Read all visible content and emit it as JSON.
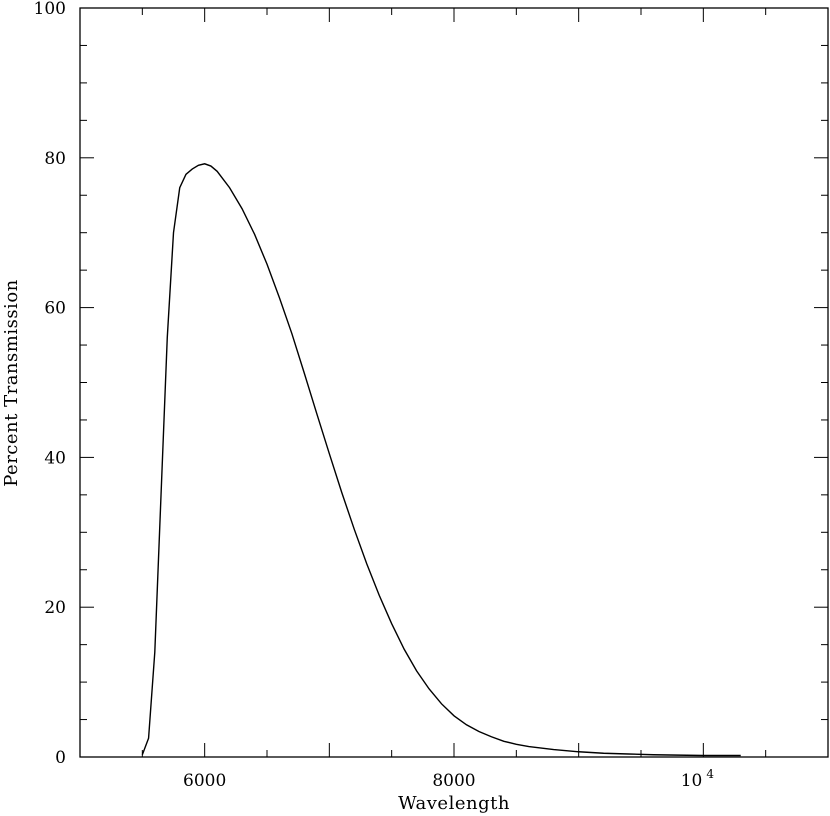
{
  "chart_data": {
    "type": "line",
    "title": "",
    "xlabel": "Wavelength",
    "ylabel": "Percent Transmission",
    "xlim": [
      5000,
      11000
    ],
    "ylim": [
      0,
      100
    ],
    "x_ticks": [
      {
        "value": 6000,
        "label": "6000"
      },
      {
        "value": 8000,
        "label": "8000"
      },
      {
        "value": 10000,
        "label": "10",
        "exponent": "4"
      }
    ],
    "y_ticks": [
      {
        "value": 0,
        "label": "0"
      },
      {
        "value": 20,
        "label": "20"
      },
      {
        "value": 40,
        "label": "40"
      },
      {
        "value": 60,
        "label": "60"
      },
      {
        "value": 80,
        "label": "80"
      },
      {
        "value": 100,
        "label": "100"
      }
    ],
    "grid": false,
    "series": [
      {
        "x": [
          5500,
          5550,
          5600,
          5650,
          5700,
          5750,
          5800,
          5850,
          5900,
          5950,
          6000,
          6050,
          6100,
          6200,
          6300,
          6400,
          6500,
          6600,
          6700,
          6800,
          6900,
          7000,
          7100,
          7200,
          7300,
          7400,
          7500,
          7600,
          7700,
          7800,
          7900,
          8000,
          8100,
          8200,
          8300,
          8400,
          8500,
          8600,
          8800,
          9000,
          9200,
          9400,
          9600,
          9800,
          10000,
          10300
        ],
        "y": [
          0.3,
          2.5,
          14.0,
          35.0,
          56.0,
          70.0,
          76.0,
          77.8,
          78.5,
          79.0,
          79.2,
          78.9,
          78.2,
          76.0,
          73.2,
          69.8,
          65.8,
          61.3,
          56.5,
          51.2,
          45.8,
          40.5,
          35.3,
          30.4,
          25.8,
          21.6,
          17.8,
          14.4,
          11.5,
          9.1,
          7.1,
          5.5,
          4.3,
          3.4,
          2.7,
          2.1,
          1.7,
          1.4,
          1.0,
          0.7,
          0.5,
          0.4,
          0.3,
          0.25,
          0.2,
          0.2
        ]
      }
    ]
  }
}
